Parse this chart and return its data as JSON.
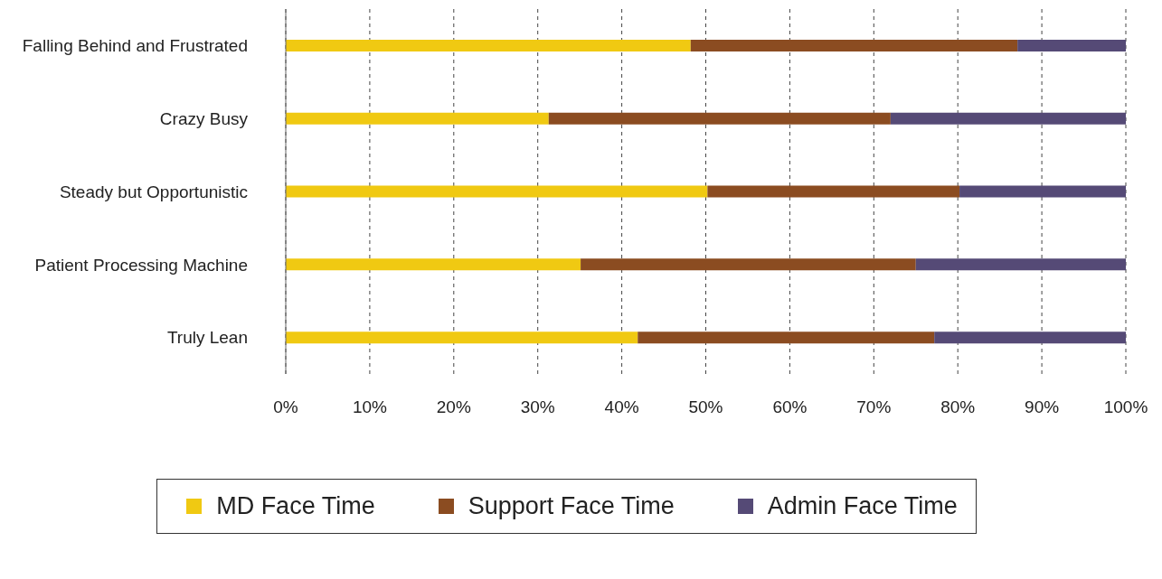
{
  "chart_data": {
    "type": "bar",
    "orientation": "horizontal",
    "stacked": true,
    "categories": [
      "Falling Behind and Frustrated",
      "Crazy Busy",
      "Steady but Opportunistic",
      "Patient Processing Machine",
      "Truly Lean"
    ],
    "series": [
      {
        "name": "MD Face Time",
        "color": "#f0c912",
        "values": [
          48.2,
          31.3,
          50.2,
          35.1,
          41.9
        ]
      },
      {
        "name": "Support Face Time",
        "color": "#8b4c21",
        "values": [
          38.9,
          40.7,
          30.0,
          39.9,
          35.3
        ]
      },
      {
        "name": "Admin Face Time",
        "color": "#554a76",
        "values": [
          12.9,
          28.0,
          19.8,
          25.0,
          22.8
        ]
      }
    ],
    "xlim": [
      0,
      100
    ],
    "xticks": [
      {
        "value": 0,
        "label": "0%"
      },
      {
        "value": 10,
        "label": "10%"
      },
      {
        "value": 20,
        "label": "20%"
      },
      {
        "value": 30,
        "label": "30%"
      },
      {
        "value": 40,
        "label": "40%"
      },
      {
        "value": 50,
        "label": "50%"
      },
      {
        "value": 60,
        "label": "60%"
      },
      {
        "value": 70,
        "label": "70%"
      },
      {
        "value": 80,
        "label": "80%"
      },
      {
        "value": 90,
        "label": "90%"
      },
      {
        "value": 100,
        "label": "100%"
      }
    ],
    "grid": "x",
    "legend": "bottom"
  }
}
